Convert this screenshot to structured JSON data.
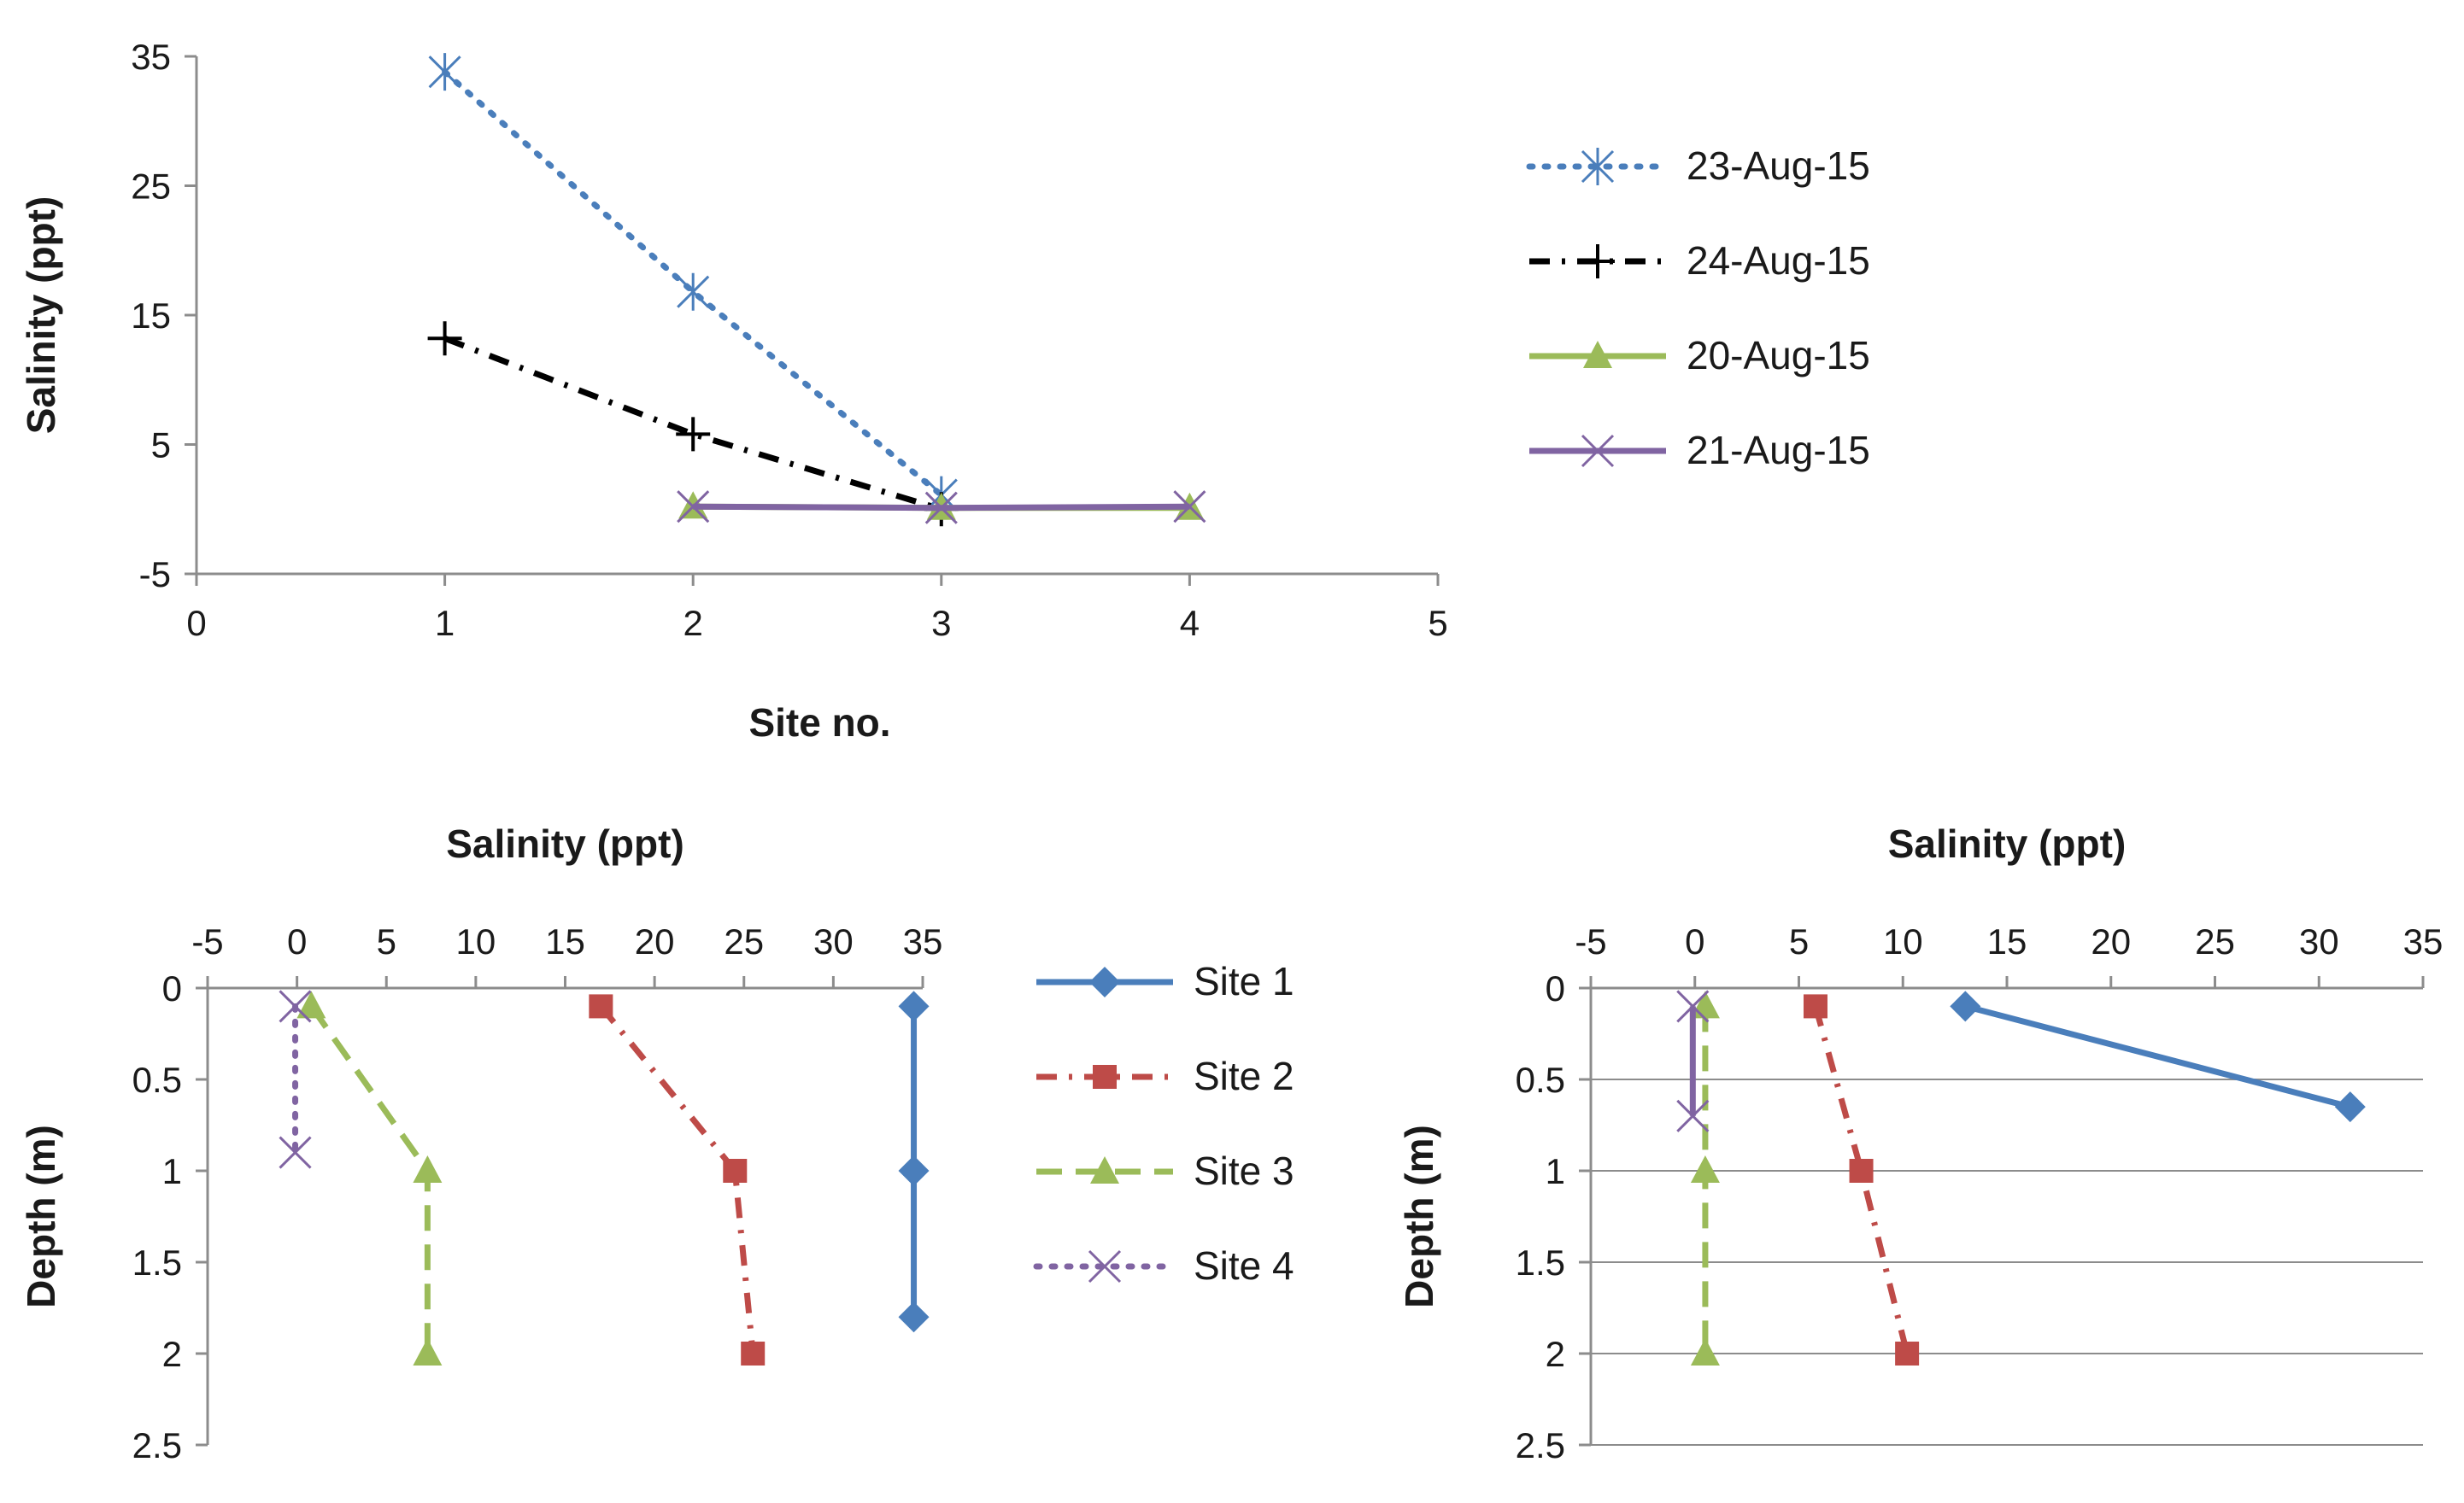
{
  "chart_data": [
    {
      "type": "line",
      "id": "top",
      "title": "",
      "xlabel": "Site no.",
      "ylabel": "Salinity (ppt)",
      "xlim": [
        0,
        5
      ],
      "ylim": [
        -5,
        35
      ],
      "xticks": [
        "0",
        "1",
        "2",
        "3",
        "4",
        "5"
      ],
      "yticks": [
        "-5",
        "5",
        "15",
        "25",
        "35"
      ],
      "grid": false,
      "legend_position": "right",
      "series": [
        {
          "name": "23-Aug-15",
          "color": "#4a7ebb",
          "dash": "dot",
          "marker": "asterisk",
          "x": [
            1,
            2,
            3
          ],
          "y": [
            33.8,
            16.8,
            1.1
          ]
        },
        {
          "name": "24-Aug-15",
          "color": "#000000",
          "dash": "dashdot",
          "marker": "plus",
          "x": [
            1,
            2,
            3
          ],
          "y": [
            13.2,
            5.8,
            0.0
          ]
        },
        {
          "name": "20-Aug-15",
          "color": "#9bbb59",
          "dash": "solid",
          "marker": "triangle",
          "x": [
            2,
            3,
            4
          ],
          "y": [
            0.2,
            0.1,
            0.1
          ]
        },
        {
          "name": "21-Aug-15",
          "color": "#8064a2",
          "dash": "solid",
          "marker": "x",
          "x": [
            2,
            3,
            4
          ],
          "y": [
            0.2,
            0.1,
            0.2
          ]
        }
      ]
    },
    {
      "type": "line",
      "id": "bottom-left",
      "title": "",
      "xlabel": "Salinity (ppt)",
      "ylabel": "Depth (m)",
      "xlim": [
        -5,
        35
      ],
      "ylim": [
        0,
        2.5
      ],
      "y_inverted": true,
      "xticks": [
        "-5",
        "0",
        "5",
        "10",
        "15",
        "20",
        "25",
        "30",
        "35"
      ],
      "yticks": [
        "0",
        "0.5",
        "1",
        "1.5",
        "2",
        "2.5"
      ],
      "grid": false,
      "legend_position": "right",
      "series": [
        {
          "name": "Site 1",
          "color": "#4a7ebb",
          "dash": "solid",
          "marker": "diamond",
          "x": [
            34.5,
            34.5,
            34.5
          ],
          "y": [
            0.1,
            1.0,
            1.8
          ]
        },
        {
          "name": "Site 2",
          "color": "#be4b48",
          "dash": "dashdot",
          "marker": "square",
          "x": [
            17.0,
            24.5,
            25.5
          ],
          "y": [
            0.1,
            1.0,
            2.0
          ]
        },
        {
          "name": "Site 3",
          "color": "#9bbb59",
          "dash": "dash",
          "marker": "triangle",
          "x": [
            0.8,
            7.3,
            7.3
          ],
          "y": [
            0.1,
            1.0,
            2.0
          ]
        },
        {
          "name": "Site 4",
          "color": "#8064a2",
          "dash": "dot",
          "marker": "x",
          "x": [
            -0.1,
            -0.1
          ],
          "y": [
            0.1,
            0.9
          ]
        }
      ]
    },
    {
      "type": "line",
      "id": "bottom-right",
      "title": "",
      "xlabel": "Salinity (ppt)",
      "ylabel": "Depth (m)",
      "xlim": [
        -5,
        35
      ],
      "ylim": [
        0,
        2.5
      ],
      "y_inverted": true,
      "xticks": [
        "-5",
        "0",
        "5",
        "10",
        "15",
        "20",
        "25",
        "30",
        "35"
      ],
      "yticks": [
        "0",
        "0.5",
        "1",
        "1.5",
        "2",
        "2.5"
      ],
      "grid": true,
      "legend_position": "none",
      "series": [
        {
          "name": "Site 1",
          "color": "#4a7ebb",
          "dash": "solid",
          "marker": "diamond",
          "x": [
            13.0,
            31.5
          ],
          "y": [
            0.1,
            0.65
          ]
        },
        {
          "name": "Site 2",
          "color": "#be4b48",
          "dash": "dashdot",
          "marker": "square",
          "x": [
            5.8,
            8.0,
            10.2
          ],
          "y": [
            0.1,
            1.0,
            2.0
          ]
        },
        {
          "name": "Site 3",
          "color": "#9bbb59",
          "dash": "dash",
          "marker": "triangle",
          "x": [
            0.5,
            0.5,
            0.5
          ],
          "y": [
            0.1,
            1.0,
            2.0
          ]
        },
        {
          "name": "Site 4",
          "color": "#8064a2",
          "dash": "solid",
          "marker": "x",
          "x": [
            -0.1,
            -0.1
          ],
          "y": [
            0.1,
            0.7
          ]
        }
      ]
    }
  ]
}
